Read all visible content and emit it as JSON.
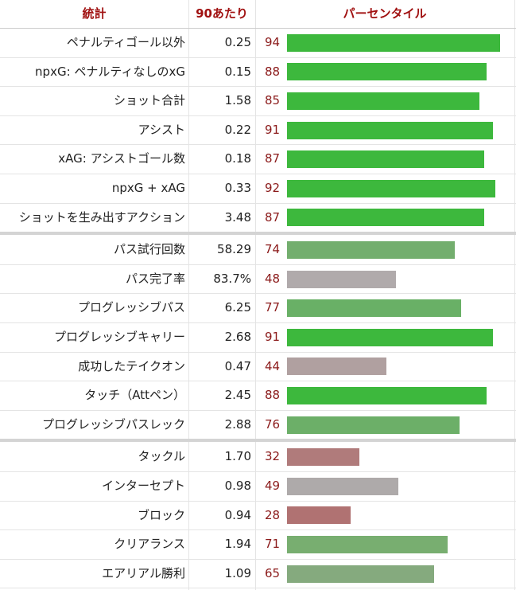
{
  "table": {
    "headers": [
      "統計",
      "90あたり",
      "パーセンタイル"
    ],
    "scale_max": 100,
    "groups": [
      [
        {
          "stat": "ペナルティゴール以外",
          "per90": "0.25",
          "percentile": 94,
          "color": "#3db83d"
        },
        {
          "stat": "npxG: ペナルティなしのxG",
          "per90": "0.15",
          "percentile": 88,
          "color": "#3db83d"
        },
        {
          "stat": "ショット合計",
          "per90": "1.58",
          "percentile": 85,
          "color": "#3db83d"
        },
        {
          "stat": "アシスト",
          "per90": "0.22",
          "percentile": 91,
          "color": "#3db83d"
        },
        {
          "stat": "xAG: アシストゴール数",
          "per90": "0.18",
          "percentile": 87,
          "color": "#3db83d"
        },
        {
          "stat": "npxG + xAG",
          "per90": "0.33",
          "percentile": 92,
          "color": "#3db83d"
        },
        {
          "stat": "ショットを生み出すアクション",
          "per90": "3.48",
          "percentile": 87,
          "color": "#3db83d"
        }
      ],
      [
        {
          "stat": "パス試行回数",
          "per90": "58.29",
          "percentile": 74,
          "color": "#73ae6e"
        },
        {
          "stat": "パス完了率",
          "per90": "83.7%",
          "percentile": 48,
          "color": "#b0aaab"
        },
        {
          "stat": "プログレッシブパス",
          "per90": "6.25",
          "percentile": 77,
          "color": "#69b066"
        },
        {
          "stat": "プログレッシブキャリー",
          "per90": "2.68",
          "percentile": 91,
          "color": "#3db83d"
        },
        {
          "stat": "成功したテイクオン",
          "per90": "0.47",
          "percentile": 44,
          "color": "#b0a0a0"
        },
        {
          "stat": "タッチ（Attペン）",
          "per90": "2.45",
          "percentile": 88,
          "color": "#3db83d"
        },
        {
          "stat": "プログレッシブパスレック",
          "per90": "2.88",
          "percentile": 76,
          "color": "#6caf68"
        }
      ],
      [
        {
          "stat": "タックル",
          "per90": "1.70",
          "percentile": 32,
          "color": "#b07b7b"
        },
        {
          "stat": "インターセプト",
          "per90": "0.98",
          "percentile": 49,
          "color": "#aeaaaa"
        },
        {
          "stat": "ブロック",
          "per90": "0.94",
          "percentile": 28,
          "color": "#b07272"
        },
        {
          "stat": "クリアランス",
          "per90": "1.94",
          "percentile": 71,
          "color": "#78ae70"
        },
        {
          "stat": "エアリアル勝利",
          "per90": "1.09",
          "percentile": 65,
          "color": "#85aa7e"
        }
      ]
    ]
  }
}
